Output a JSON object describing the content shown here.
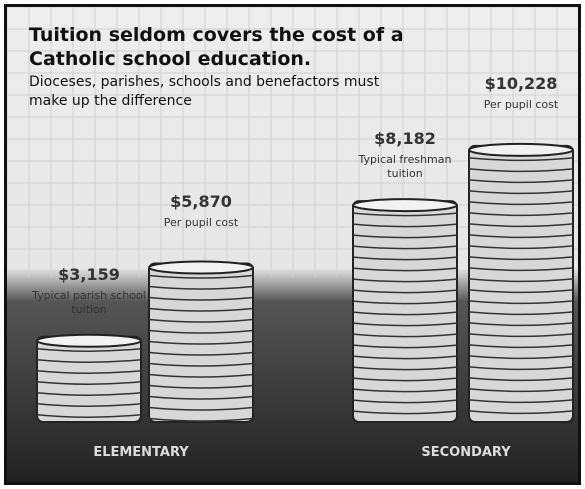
{
  "chart_data": {
    "type": "coin-stack",
    "title": "Tuition seldom covers the cost of a Catholic school education.",
    "subtitle": "Dioceses, parishes, schools and benefactors must make up the difference",
    "values": [
      3159,
      5870,
      8182,
      10228
    ],
    "value_labels": [
      "$3,159",
      "$5,870",
      "$8,182",
      "$10,228"
    ],
    "categories": [
      "Typical parish school tuition",
      "Per pupil cost",
      "Typical freshman tuition",
      "Per pupil cost"
    ],
    "groups": [
      "ELEMENTARY",
      "SECONDARY"
    ]
  }
}
